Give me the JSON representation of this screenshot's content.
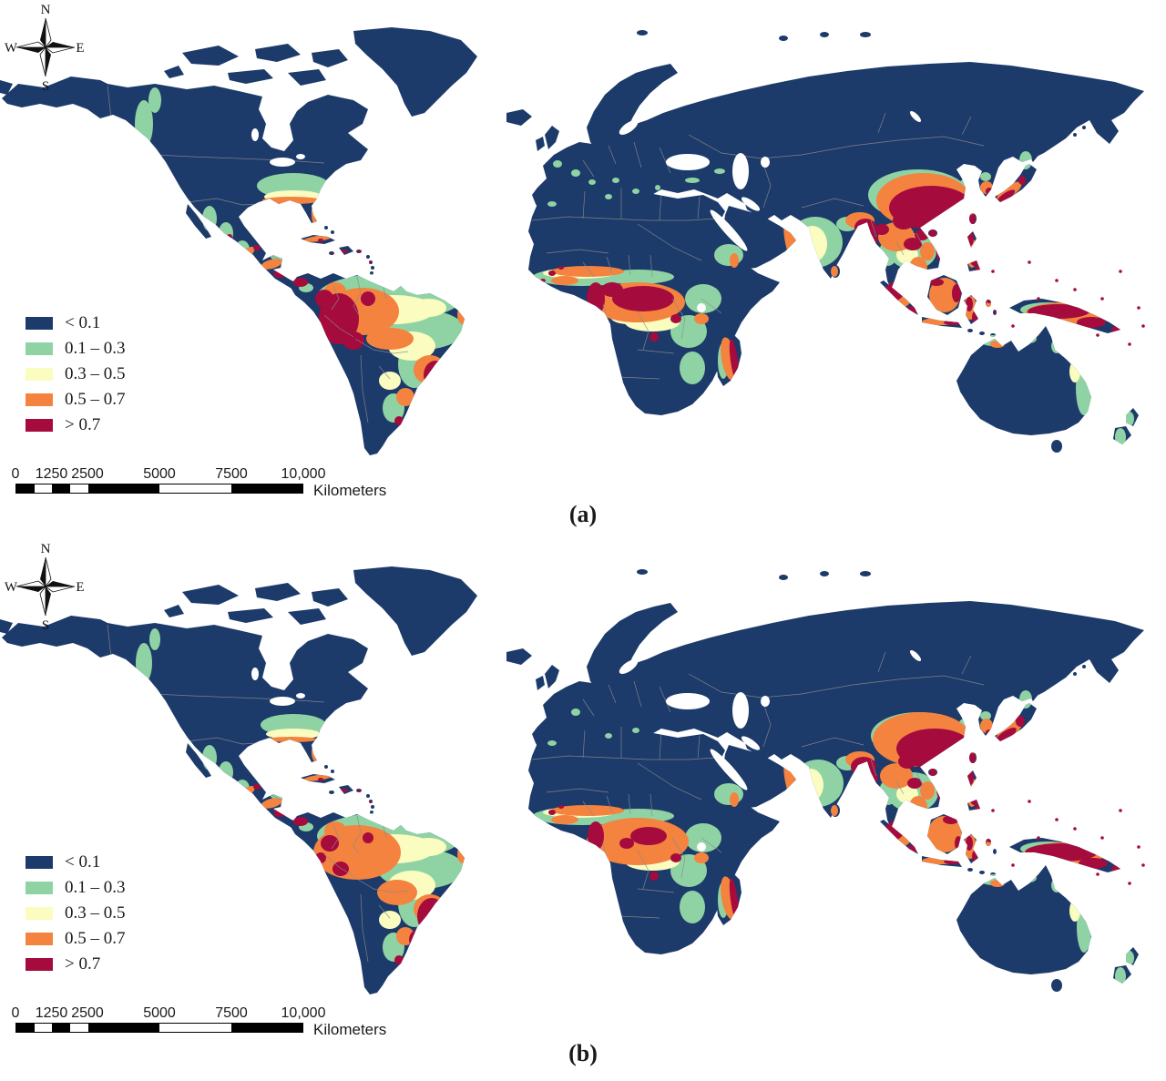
{
  "figure": {
    "type": "two-panel global choropleth risk map",
    "background": "#ffffff"
  },
  "legend": {
    "items": [
      {
        "label": "< 0.1",
        "color": "#1c3a6a"
      },
      {
        "label": "0.1 – 0.3",
        "color": "#8fd3a4"
      },
      {
        "label": "0.3 – 0.5",
        "color": "#fbfcc0"
      },
      {
        "label": "0.5 – 0.7",
        "color": "#f3833f"
      },
      {
        "label": "> 0.7",
        "color": "#a50b3c"
      }
    ]
  },
  "compass": {
    "north": "N",
    "south": "S",
    "east": "E",
    "west": "W"
  },
  "scalebar": {
    "ticks": [
      "0",
      "1250",
      "2500",
      "5000",
      "7500",
      "10,000"
    ],
    "tick_km": [
      0,
      1250,
      2500,
      5000,
      7500,
      10000
    ],
    "unit_label": "Kilometers",
    "total_km": 10000
  },
  "panels": [
    {
      "caption": "(a)",
      "content_note": "Highest classes (>0.7) over western Amazon, southeastern Brazil, Central America, Congo basin, eastern Madagascar, south China, NE India, island Southeast Asia, New Guinea, southern Japan"
    },
    {
      "caption": "(b)",
      "content_note": "Similar pattern with more 0.5–0.7 (orange) in Amazon and Congo basins, red retained in SE Brazil, south China, NE India, Japan, Borneo, New Guinea"
    }
  ],
  "map_colors": {
    "ocean": "#ffffff",
    "country_borders": "#8b8b8b"
  }
}
